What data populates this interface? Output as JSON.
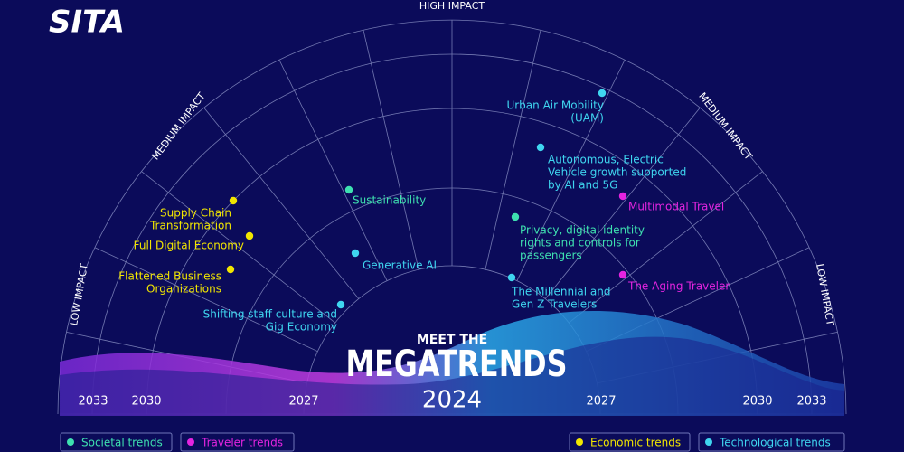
{
  "logo": "SITA",
  "impact_labels": {
    "high": "HIGH IMPACT",
    "medium_left": "MEDIUM IMPACT",
    "medium_right": "MEDIUM IMPACT",
    "low_left": "LOW IMPACT",
    "low_right": "LOW IMPACT"
  },
  "title": {
    "pre": "MEET THE",
    "main": "MEGATRENDS",
    "year": "2024"
  },
  "years": [
    "2033",
    "2030",
    "2027",
    "2027",
    "2030",
    "2033"
  ],
  "trends": [
    {
      "lines": [
        "Urban Air Mobility",
        "(UAM)"
      ],
      "color": "#3fd6f0"
    },
    {
      "lines": [
        "Autonomous, Electric",
        "Vehicle growth supported",
        "by AI and 5G"
      ],
      "color": "#3fd6f0"
    },
    {
      "lines": [
        "Multimodal Travel"
      ],
      "color": "#e524e0"
    },
    {
      "lines": [
        "Privacy, digital identity",
        "rights and controls for",
        "passengers"
      ],
      "color": "#3ee0b0"
    },
    {
      "lines": [
        "The Aging Traveler"
      ],
      "color": "#e524e0"
    },
    {
      "lines": [
        "The Millennial and",
        "Gen Z Travelers"
      ],
      "color": "#3fd6f0"
    },
    {
      "lines": [
        "Sustainability"
      ],
      "color": "#3ee0b0"
    },
    {
      "lines": [
        "Generative AI"
      ],
      "color": "#3fd6f0"
    },
    {
      "lines": [
        "Shifting staff culture and",
        "Gig Economy"
      ],
      "color": "#3fd6f0"
    },
    {
      "lines": [
        "Supply Chain",
        "Transformation"
      ],
      "color": "#f2e600"
    },
    {
      "lines": [
        "Full Digital Economy"
      ],
      "color": "#f2e600"
    },
    {
      "lines": [
        "Flattened Business",
        "Organizations"
      ],
      "color": "#f2e600"
    }
  ],
  "legend": [
    {
      "label": "Societal trends",
      "color": "#3ee0b0"
    },
    {
      "label": "Traveler trends",
      "color": "#e524e0"
    },
    {
      "label": "Economic trends",
      "color": "#f2e600"
    },
    {
      "label": "Technological trends",
      "color": "#3fd6f0"
    }
  ]
}
